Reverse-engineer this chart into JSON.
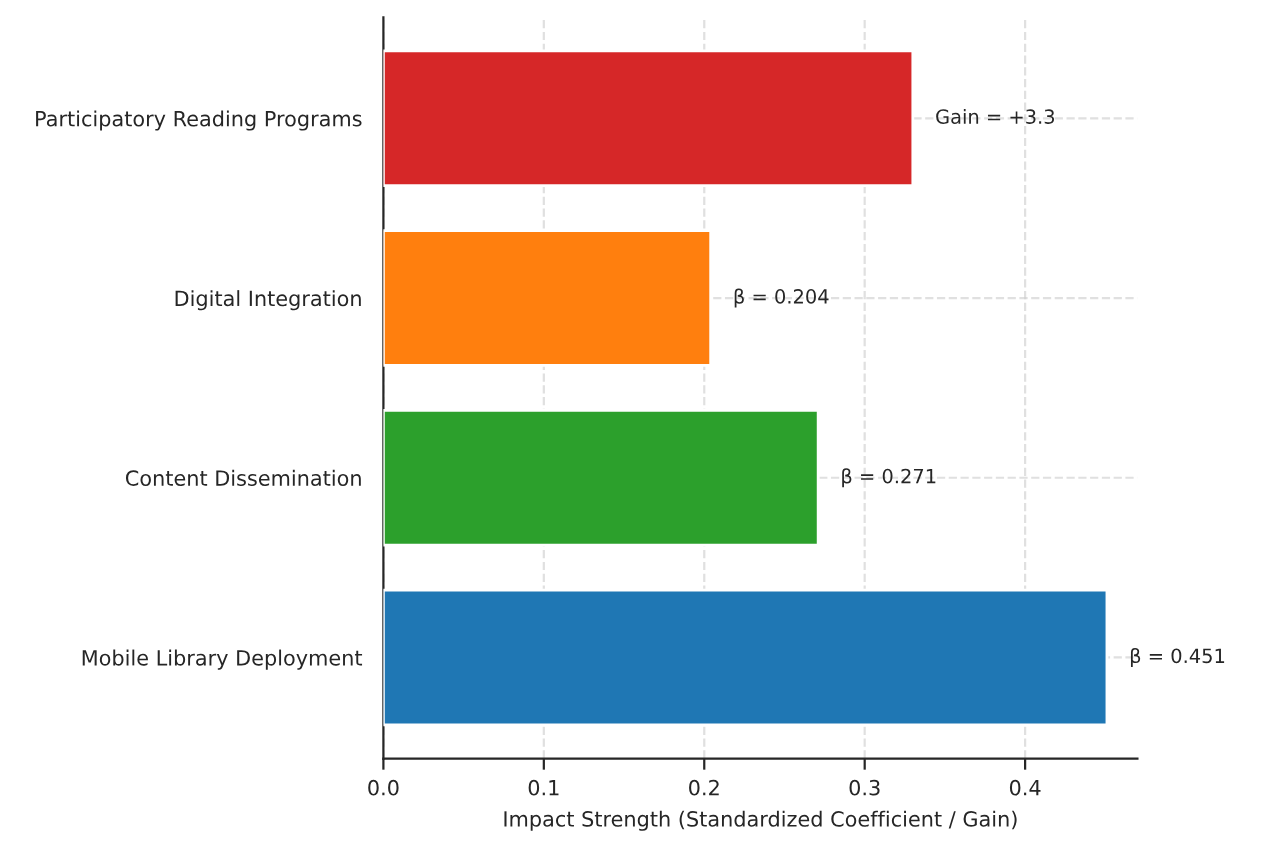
{
  "chart_data": {
    "type": "bar",
    "orientation": "horizontal",
    "xlabel": "Impact Strength (Standardized Coefficient / Gain)",
    "categories": [
      "Participatory Reading Programs",
      "Digital Integration",
      "Content Dissemination",
      "Mobile Library Deployment"
    ],
    "values": [
      0.33,
      0.204,
      0.271,
      0.451
    ],
    "colors": [
      "#d62728",
      "#ff7f0e",
      "#2ca02c",
      "#1f77b4"
    ],
    "value_labels": [
      null,
      "β = 0.204",
      "β = 0.271",
      "β = 0.451"
    ],
    "annotations": [
      {
        "text": "Gain = +3.3",
        "x": 0.33,
        "y": "Participatory Reading Programs"
      }
    ],
    "xlim": [
      0,
      0.47
    ],
    "xticks": [
      {
        "value": 0,
        "label": "0.0"
      },
      0.1,
      0.2,
      0.3,
      0.4
    ],
    "grid": true,
    "line_style": "dashed"
  }
}
